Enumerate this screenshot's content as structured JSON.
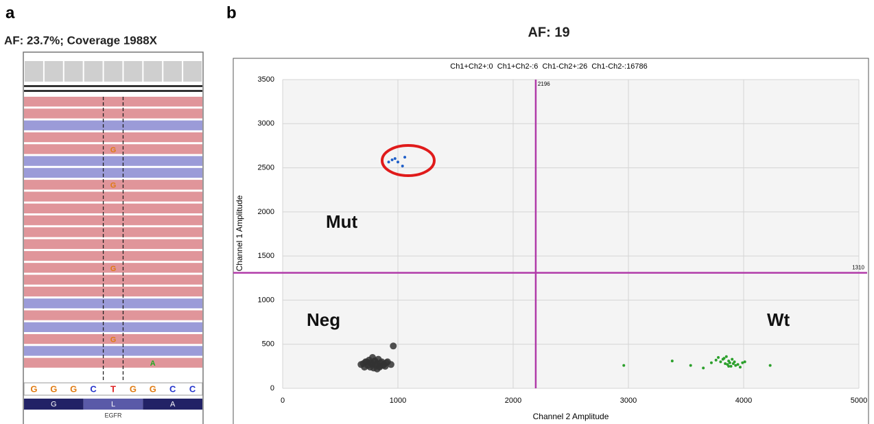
{
  "panel_a": {
    "label": "a",
    "header": "AF: 23.7%; Coverage 1988X",
    "reads": [
      {
        "color": "red"
      },
      {
        "color": "red"
      },
      {
        "color": "blue"
      },
      {
        "color": "red"
      },
      {
        "color": "red",
        "bases": [
          null,
          null,
          null,
          null,
          "G",
          null,
          null,
          null,
          null
        ]
      },
      {
        "color": "blue"
      },
      {
        "color": "blue"
      },
      {
        "color": "red",
        "bases": [
          null,
          null,
          null,
          null,
          "G",
          null,
          null,
          null,
          null
        ]
      },
      {
        "color": "red"
      },
      {
        "color": "red"
      },
      {
        "color": "red"
      },
      {
        "color": "red"
      },
      {
        "color": "red"
      },
      {
        "color": "red"
      },
      {
        "color": "red",
        "bases": [
          null,
          null,
          null,
          null,
          "G",
          null,
          null,
          null,
          null
        ]
      },
      {
        "color": "red"
      },
      {
        "color": "red"
      },
      {
        "color": "blue"
      },
      {
        "color": "red"
      },
      {
        "color": "blue"
      },
      {
        "color": "red",
        "bases": [
          null,
          null,
          null,
          null,
          "G",
          null,
          null,
          null,
          null
        ]
      },
      {
        "color": "blue"
      },
      {
        "color": "red",
        "bases": [
          null,
          null,
          null,
          null,
          null,
          null,
          "A",
          null,
          null
        ]
      }
    ],
    "sequence": [
      "G",
      "G",
      "G",
      "C",
      "T",
      "G",
      "G",
      "C",
      "C"
    ],
    "amino_acids": [
      "G",
      "L",
      "A"
    ],
    "gene": "EGFR"
  },
  "chart_data": {
    "type": "scatter",
    "label": "b",
    "title": "AF: 19",
    "subtitle": "Ch1+Ch2+:0  Ch1+Ch2-:6  Ch1-Ch2+:26  Ch1-Ch2-:16786",
    "x_label": "Channel 2 Amplitude",
    "y_label": "Channel 1 Amplitude",
    "xlim": [
      0,
      5000
    ],
    "ylim": [
      0,
      3500
    ],
    "xticks": [
      0,
      1000,
      2000,
      3000,
      4000,
      5000
    ],
    "yticks": [
      0,
      500,
      1000,
      1500,
      2000,
      2500,
      3000,
      3500
    ],
    "grid": true,
    "thresholds": {
      "x": 2196,
      "y": 1310,
      "color": "#b03aa8"
    },
    "series": [
      {
        "name": "Mut",
        "color": "#1f5fc9",
        "x": [
          920,
          950,
          975,
          1000,
          1040,
          1060
        ],
        "values": [
          2566,
          2590,
          2605,
          2566,
          2520,
          2620
        ]
      },
      {
        "name": "Neg",
        "color": "#333333",
        "x": [
          700,
          720,
          740,
          760,
          780,
          800,
          820,
          840,
          860,
          880,
          900,
          680,
          710,
          750,
          790,
          830,
          870,
          910,
          730,
          770,
          810,
          850,
          890,
          760,
          800,
          840,
          780,
          820,
          940,
          960
        ],
        "values": [
          280,
          300,
          260,
          290,
          270,
          310,
          280,
          250,
          300,
          270,
          290,
          270,
          240,
          320,
          230,
          330,
          260,
          300,
          300,
          280,
          260,
          290,
          250,
          240,
          310,
          240,
          350,
          220,
          270,
          480
        ]
      },
      {
        "name": "Wt",
        "color": "#2ca02c",
        "x": [
          2960,
          3380,
          3540,
          3650,
          3720,
          3760,
          3780,
          3800,
          3820,
          3840,
          3850,
          3860,
          3870,
          3880,
          3890,
          3900,
          3910,
          3920,
          3930,
          3950,
          3970,
          3990,
          4010,
          3830,
          3870,
          4230
        ],
        "values": [
          260,
          310,
          260,
          230,
          290,
          320,
          350,
          300,
          330,
          280,
          360,
          270,
          310,
          290,
          250,
          330,
          280,
          300,
          260,
          270,
          240,
          290,
          300,
          340,
          250,
          260
        ]
      }
    ]
  }
}
